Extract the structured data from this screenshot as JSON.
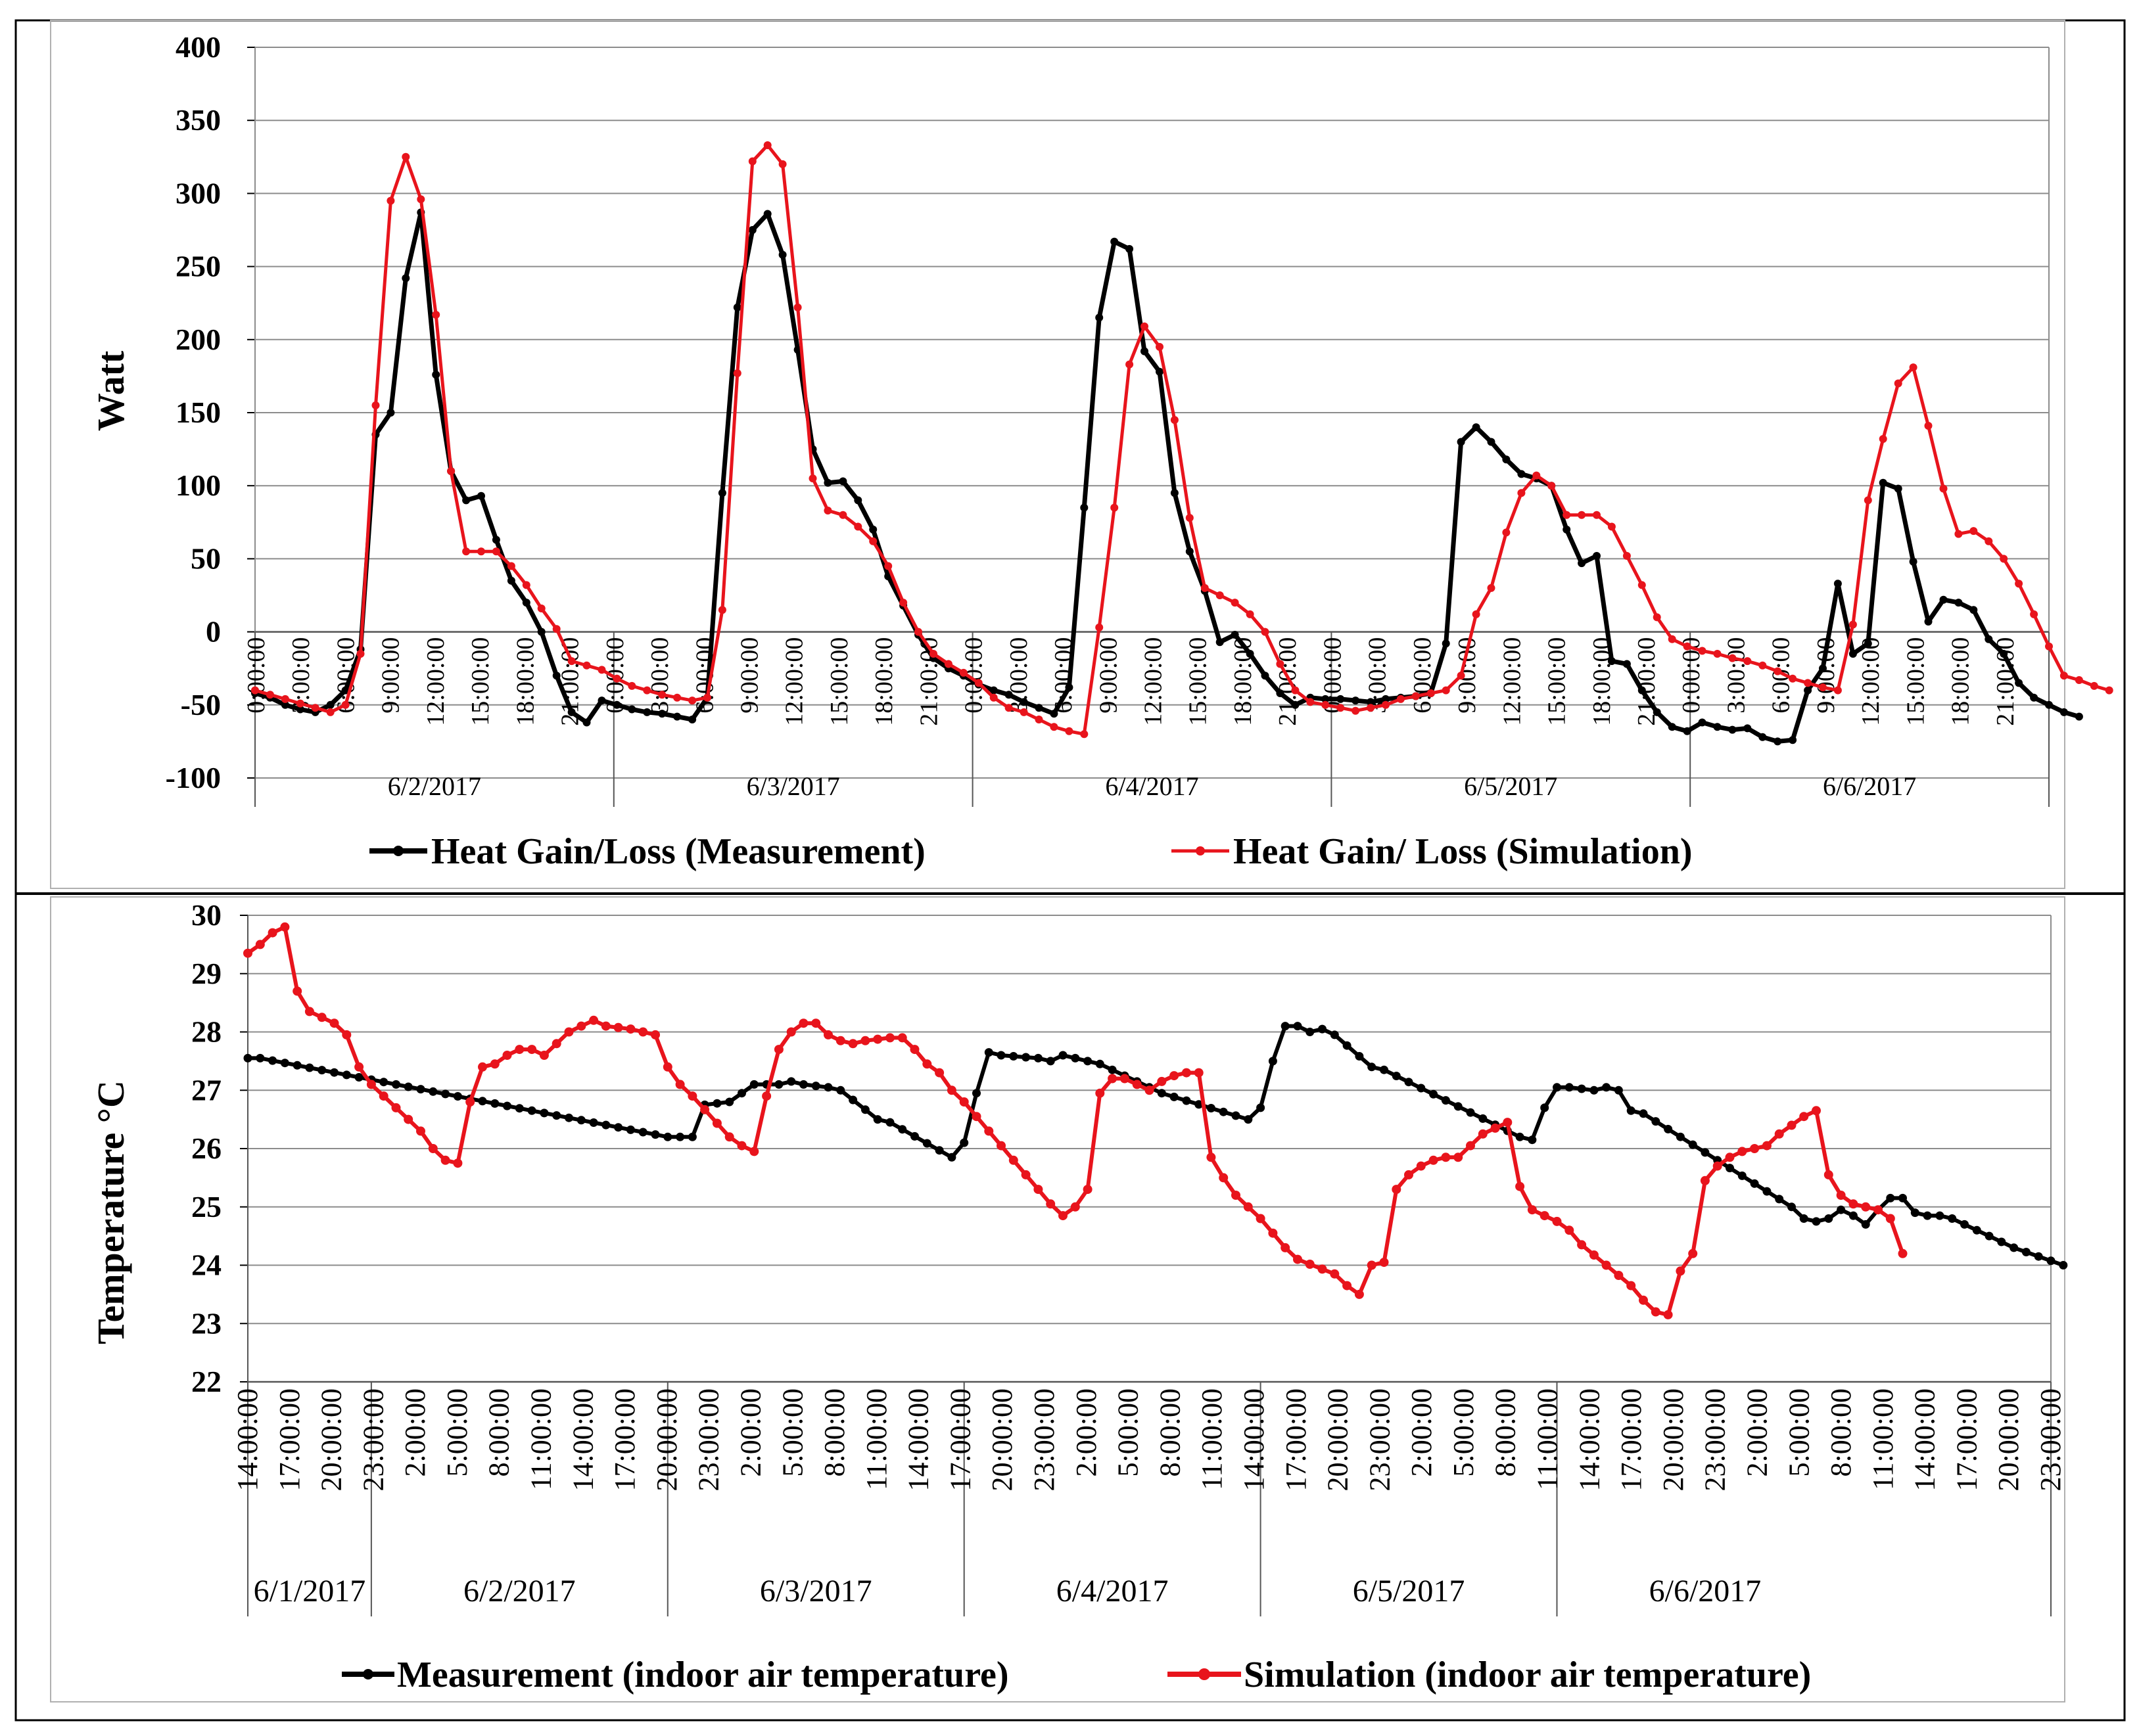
{
  "chart_data": [
    {
      "type": "line",
      "title": "",
      "xlabel": "",
      "ylabel": "Watt",
      "ylim": [
        -100,
        400
      ],
      "yticks": [
        400,
        350,
        300,
        250,
        200,
        150,
        100,
        50,
        0,
        -50,
        -100
      ],
      "grid": true,
      "legend_position": "bottom",
      "points_per_day": 24,
      "days": [
        "6/2/2017",
        "6/3/2017",
        "6/4/2017",
        "6/5/2017",
        "6/6/2017"
      ],
      "time_labels": [
        "0:00:00",
        "3:00:00",
        "6:00:00",
        "9:00:00",
        "12:00:00",
        "15:00:00",
        "18:00:00",
        "21:00:00"
      ],
      "colors": {
        "measurement": "#000000",
        "simulation": "#e8141c"
      },
      "series": [
        {
          "name": "Heat Gain/Loss (Measurement)",
          "color": "#000000",
          "values": [
            -42,
            -45,
            -50,
            -53,
            -55,
            -50,
            -40,
            -12,
            135,
            150,
            242,
            287,
            176,
            110,
            90,
            93,
            63,
            35,
            20,
            0,
            -30,
            -55,
            -62,
            -47,
            -50,
            -53,
            -55,
            -56,
            -58,
            -60,
            -45,
            95,
            222,
            275,
            286,
            258,
            193,
            125,
            102,
            103,
            90,
            70,
            38,
            18,
            -2,
            -18,
            -25,
            -30,
            -36,
            -40,
            -43,
            -48,
            -52,
            -56,
            -38,
            85,
            215,
            267,
            262,
            192,
            178,
            95,
            55,
            28,
            -7,
            -2,
            -15,
            -30,
            -42,
            -50,
            -45,
            -46,
            -46,
            -47,
            -48,
            -46,
            -45,
            -44,
            -42,
            -8,
            130,
            140,
            130,
            118,
            108,
            105,
            100,
            70,
            47,
            52,
            -20,
            -22,
            -40,
            -55,
            -65,
            -68,
            -62,
            -65,
            -67,
            -66,
            -72,
            -75,
            -74,
            -40,
            -25,
            33,
            -15,
            -8,
            102,
            98,
            48,
            7,
            22,
            20,
            15,
            -5,
            -15,
            -35,
            -45,
            -50,
            -55,
            -58
          ]
        },
        {
          "name": "Heat Gain/ Loss (Simulation)",
          "color": "#e8141c",
          "values": [
            -40,
            -43,
            -46,
            -49,
            -52,
            -55,
            -50,
            -15,
            155,
            295,
            325,
            296,
            217,
            110,
            55,
            55,
            55,
            45,
            32,
            16,
            2,
            -20,
            -23,
            -26,
            -32,
            -37,
            -40,
            -43,
            -45,
            -47,
            -45,
            15,
            177,
            322,
            333,
            320,
            222,
            105,
            83,
            80,
            72,
            62,
            45,
            20,
            0,
            -15,
            -22,
            -28,
            -35,
            -45,
            -52,
            -55,
            -60,
            -65,
            -68,
            -70,
            3,
            85,
            183,
            209,
            195,
            145,
            78,
            30,
            25,
            20,
            12,
            0,
            -22,
            -40,
            -48,
            -50,
            -52,
            -54,
            -52,
            -50,
            -46,
            -44,
            -42,
            -40,
            -30,
            12,
            30,
            68,
            95,
            107,
            100,
            80,
            80,
            80,
            72,
            52,
            32,
            10,
            -5,
            -10,
            -13,
            -15,
            -18,
            -20,
            -23,
            -27,
            -32,
            -35,
            -38,
            -40,
            5,
            90,
            132,
            170,
            181,
            141,
            98,
            67,
            69,
            62,
            50,
            33,
            12,
            -10,
            -30,
            -33,
            -37,
            -40
          ]
        }
      ]
    },
    {
      "type": "line",
      "title": "",
      "xlabel": "",
      "ylabel": "Temperature °C",
      "ylim": [
        22,
        30
      ],
      "yticks": [
        30,
        29,
        28,
        27,
        26,
        25,
        24,
        23,
        22
      ],
      "grid": true,
      "legend_position": "bottom",
      "time_labels": [
        "14:00:00",
        "17:00:00",
        "20:00:00",
        "23:00:00",
        "2:00:00",
        "5:00:00",
        "8:00:00",
        "11:00:00",
        "14:00:00",
        "17:00:00",
        "20:00:00",
        "23:00:00",
        "2:00:00",
        "5:00:00",
        "8:00:00",
        "11:00:00",
        "14:00:00",
        "17:00:00",
        "20:00:00",
        "23:00:00",
        "2:00:00",
        "5:00:00",
        "8:00:00",
        "11:00:00",
        "14:00:00",
        "17:00:00",
        "20:00:00",
        "23:00:00",
        "2:00:00",
        "5:00:00",
        "8:00:00",
        "11:00:00",
        "14:00:00",
        "17:00:00",
        "20:00:00",
        "23:00:00",
        "2:00:00",
        "5:00:00",
        "8:00:00",
        "11:00:00",
        "14:00:00",
        "17:00:00",
        "20:00:00",
        "23:00:00"
      ],
      "day_groups": [
        {
          "label": "6/1/2017",
          "hours": 10
        },
        {
          "label": "6/2/2017",
          "hours": 24
        },
        {
          "label": "6/3/2017",
          "hours": 24
        },
        {
          "label": "6/4/2017",
          "hours": 24
        },
        {
          "label": "6/5/2017",
          "hours": 24
        },
        {
          "label": "6/6/2017",
          "hours": 24
        }
      ],
      "series": [
        {
          "name": "Measurement (indoor air temperature)",
          "color": "#000000",
          "knots": [
            [
              0,
              27.55
            ],
            [
              1,
              27.55
            ],
            [
              34,
              26.2
            ],
            [
              36,
              26.2
            ],
            [
              37,
              26.75
            ],
            [
              39,
              26.8
            ],
            [
              41,
              27.1
            ],
            [
              43,
              27.1
            ],
            [
              44,
              27.15
            ],
            [
              45,
              27.1
            ],
            [
              47,
              27.05
            ],
            [
              48,
              27.0
            ],
            [
              51,
              26.5
            ],
            [
              52,
              26.45
            ],
            [
              57,
              25.85
            ],
            [
              58,
              26.1
            ],
            [
              59,
              26.95
            ],
            [
              60,
              27.65
            ],
            [
              61,
              27.6
            ],
            [
              64,
              27.55
            ],
            [
              65,
              27.5
            ],
            [
              66,
              27.6
            ],
            [
              67,
              27.55
            ],
            [
              69,
              27.45
            ],
            [
              74,
              26.95
            ],
            [
              81,
              26.5
            ],
            [
              82,
              26.7
            ],
            [
              83,
              27.5
            ],
            [
              84,
              28.1
            ],
            [
              85,
              28.1
            ],
            [
              86,
              28.0
            ],
            [
              87,
              28.05
            ],
            [
              88,
              27.95
            ],
            [
              91,
              27.4
            ],
            [
              92,
              27.35
            ],
            [
              103,
              26.2
            ],
            [
              104,
              26.15
            ],
            [
              105,
              26.7
            ],
            [
              106,
              27.05
            ],
            [
              107,
              27.05
            ],
            [
              109,
              27.0
            ],
            [
              110,
              27.05
            ],
            [
              111,
              27.0
            ],
            [
              112,
              26.65
            ],
            [
              113,
              26.6
            ],
            [
              125,
              25.0
            ],
            [
              126,
              24.8
            ],
            [
              127,
              24.75
            ],
            [
              128,
              24.8
            ],
            [
              129,
              24.95
            ],
            [
              130,
              24.85
            ],
            [
              131,
              24.7
            ],
            [
              132,
              24.95
            ],
            [
              133,
              25.15
            ],
            [
              134,
              25.15
            ],
            [
              135,
              24.9
            ],
            [
              136,
              24.85
            ],
            [
              137,
              24.85
            ],
            [
              138,
              24.8
            ],
            [
              143,
              24.3
            ],
            [
              147,
              24.0
            ]
          ]
        },
        {
          "name": "Simulation (indoor air temperature)",
          "color": "#e8141c",
          "knots": [
            [
              0,
              29.35
            ],
            [
              1,
              29.5
            ],
            [
              2,
              29.7
            ],
            [
              3,
              29.8
            ],
            [
              4,
              28.7
            ],
            [
              5,
              28.35
            ],
            [
              6,
              28.25
            ],
            [
              7,
              28.15
            ],
            [
              8,
              27.95
            ],
            [
              9,
              27.4
            ],
            [
              10,
              27.1
            ],
            [
              14,
              26.3
            ],
            [
              15,
              26.0
            ],
            [
              16,
              25.8
            ],
            [
              17,
              25.75
            ],
            [
              18,
              26.8
            ],
            [
              19,
              27.4
            ],
            [
              20,
              27.45
            ],
            [
              21,
              27.6
            ],
            [
              22,
              27.7
            ],
            [
              23,
              27.7
            ],
            [
              24,
              27.6
            ],
            [
              25,
              27.8
            ],
            [
              26,
              28.0
            ],
            [
              27,
              28.1
            ],
            [
              28,
              28.2
            ],
            [
              29,
              28.1
            ],
            [
              31,
              28.05
            ],
            [
              32,
              28.0
            ],
            [
              33,
              27.95
            ],
            [
              34,
              27.4
            ],
            [
              35,
              27.1
            ],
            [
              36,
              26.9
            ],
            [
              39,
              26.2
            ],
            [
              40,
              26.05
            ],
            [
              41,
              25.95
            ],
            [
              42,
              26.9
            ],
            [
              43,
              27.7
            ],
            [
              44,
              28.0
            ],
            [
              45,
              28.15
            ],
            [
              46,
              28.15
            ],
            [
              47,
              27.95
            ],
            [
              48,
              27.85
            ],
            [
              49,
              27.8
            ],
            [
              50,
              27.85
            ],
            [
              52,
              27.9
            ],
            [
              53,
              27.9
            ],
            [
              54,
              27.7
            ],
            [
              55,
              27.45
            ],
            [
              56,
              27.3
            ],
            [
              57,
              27.0
            ],
            [
              58,
              26.8
            ],
            [
              65,
              25.05
            ],
            [
              66,
              24.85
            ],
            [
              67,
              25.0
            ],
            [
              68,
              25.3
            ],
            [
              69,
              26.95
            ],
            [
              70,
              27.2
            ],
            [
              71,
              27.2
            ],
            [
              72,
              27.1
            ],
            [
              73,
              27.0
            ],
            [
              74,
              27.15
            ],
            [
              75,
              27.25
            ],
            [
              76,
              27.3
            ],
            [
              77,
              27.3
            ],
            [
              78,
              25.85
            ],
            [
              79,
              25.5
            ],
            [
              80,
              25.2
            ],
            [
              81,
              25.0
            ],
            [
              82,
              24.8
            ],
            [
              84,
              24.3
            ],
            [
              85,
              24.1
            ],
            [
              88,
              23.85
            ],
            [
              89,
              23.65
            ],
            [
              90,
              23.5
            ],
            [
              91,
              24.0
            ],
            [
              92,
              24.05
            ],
            [
              93,
              25.3
            ],
            [
              94,
              25.55
            ],
            [
              95,
              25.7
            ],
            [
              96,
              25.8
            ],
            [
              97,
              25.85
            ],
            [
              98,
              25.85
            ],
            [
              99,
              26.05
            ],
            [
              100,
              26.25
            ],
            [
              101,
              26.35
            ],
            [
              102,
              26.45
            ],
            [
              103,
              25.35
            ],
            [
              104,
              24.95
            ],
            [
              105,
              24.85
            ],
            [
              106,
              24.75
            ],
            [
              107,
              24.6
            ],
            [
              108,
              24.35
            ],
            [
              112,
              23.65
            ],
            [
              113,
              23.4
            ],
            [
              114,
              23.2
            ],
            [
              115,
              23.15
            ],
            [
              116,
              23.9
            ],
            [
              117,
              24.2
            ],
            [
              118,
              25.45
            ],
            [
              119,
              25.7
            ],
            [
              120,
              25.85
            ],
            [
              121,
              25.95
            ],
            [
              122,
              26.0
            ],
            [
              123,
              26.05
            ],
            [
              124,
              26.25
            ],
            [
              125,
              26.4
            ],
            [
              126,
              26.55
            ],
            [
              127,
              26.65
            ],
            [
              128,
              25.55
            ],
            [
              129,
              25.2
            ],
            [
              130,
              25.05
            ],
            [
              131,
              25.0
            ],
            [
              132,
              24.95
            ],
            [
              133,
              24.8
            ],
            [
              134,
              24.2
            ]
          ]
        }
      ]
    }
  ]
}
